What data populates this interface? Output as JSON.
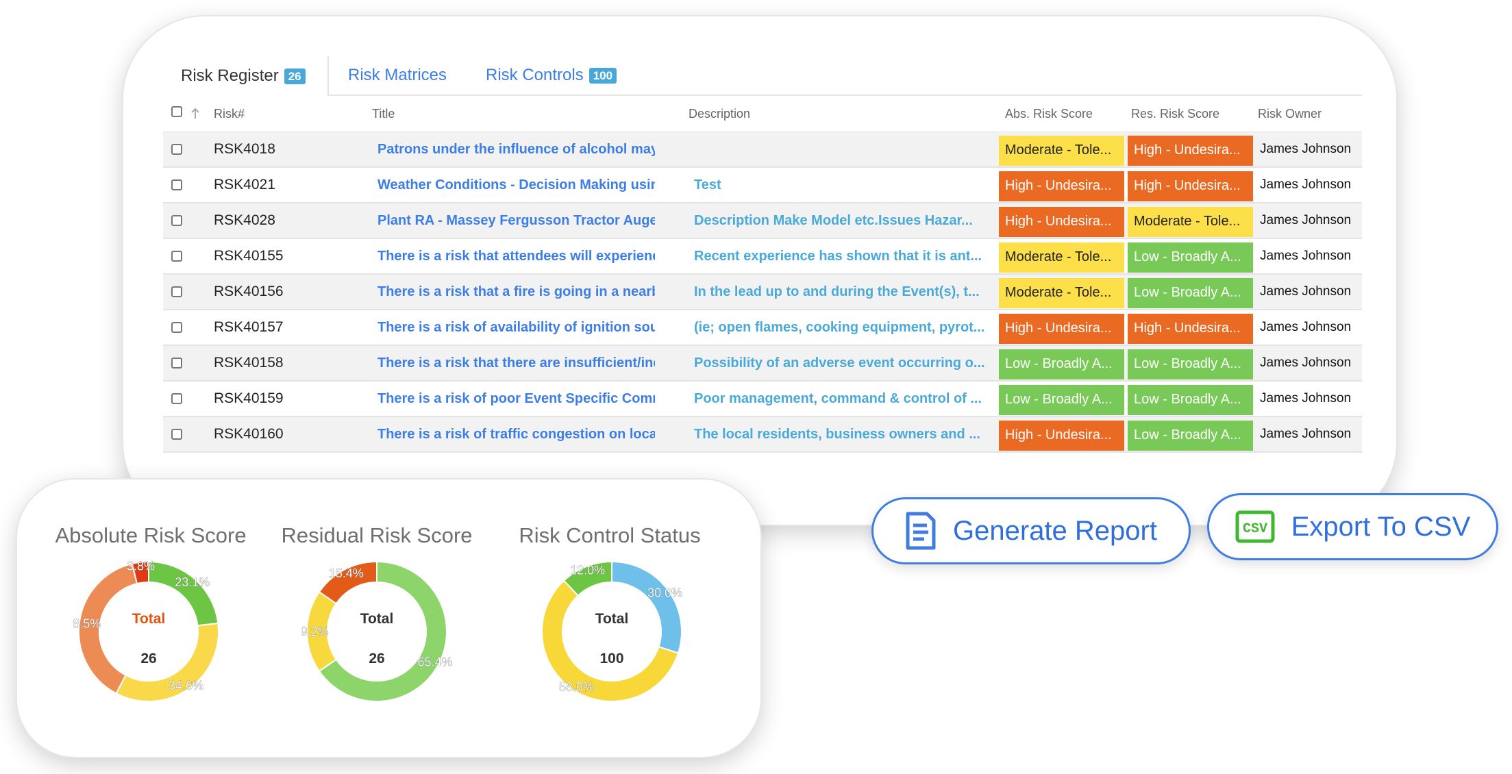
{
  "tabs": [
    {
      "label": "Risk Register",
      "badge": "26"
    },
    {
      "label": "Risk Matrices",
      "badge": ""
    },
    {
      "label": "Risk Controls",
      "badge": "100"
    }
  ],
  "table": {
    "headers": {
      "risk": "Risk#",
      "title": "Title",
      "description": "Description",
      "abs": "Abs. Risk Score",
      "res": "Res. Risk Score",
      "owner": "Risk Owner"
    },
    "rows": [
      {
        "id": "RSK4018",
        "title": "Patrons under the influence of alcohol may lea",
        "description": "",
        "abs": "Moderate - Tole...",
        "abs_level": "moderate",
        "res": "High - Undesira...",
        "res_level": "high",
        "owner": "James Johnson"
      },
      {
        "id": "RSK4021",
        "title": "Weather Conditions - Decision Making using O",
        "description": "Test",
        "abs": "High - Undesira...",
        "abs_level": "high",
        "res": "High - Undesira...",
        "res_level": "high",
        "owner": "James Johnson"
      },
      {
        "id": "RSK4028",
        "title": "Plant RA - Massey Fergusson Tractor Auger",
        "description": "Description Make Model etc.Issues Hazar...",
        "abs": "High - Undesira...",
        "abs_level": "high",
        "res": "Moderate - Tole...",
        "res_level": "moderate",
        "owner": "James Johnson"
      },
      {
        "id": "RSK40155",
        "title": "There is a risk that attendees will experience s",
        "description": "Recent experience has shown that it is ant...",
        "abs": "Moderate - Tole...",
        "abs_level": "moderate",
        "res": "Low - Broadly A...",
        "res_level": "low",
        "owner": "James Johnson"
      },
      {
        "id": "RSK40156",
        "title": "There is a risk that a fire is going in a nearby lo",
        "description": "In the lead up to and during the Event(s), t...",
        "abs": "Moderate - Tole...",
        "abs_level": "moderate",
        "res": "Low - Broadly A...",
        "res_level": "low",
        "owner": "James Johnson"
      },
      {
        "id": "RSK40157",
        "title": "There is a risk of availability of ignition sources",
        "description": "(ie; open flames, cooking equipment, pyrot...",
        "abs": "High - Undesira...",
        "abs_level": "high",
        "res": "High - Undesira...",
        "res_level": "high",
        "owner": "James Johnson"
      },
      {
        "id": "RSK40158",
        "title": "There is a risk that there are insufficient/ineffe",
        "description": "Possibility of an adverse event occurring o...",
        "abs": "Low - Broadly A...",
        "abs_level": "low",
        "res": "Low - Broadly A...",
        "res_level": "low",
        "owner": "James Johnson"
      },
      {
        "id": "RSK40159",
        "title": "There is a risk of poor Event Specific Comman",
        "description": "Poor management, command & control of ...",
        "abs": "Low - Broadly A...",
        "abs_level": "low",
        "res": "Low - Broadly A...",
        "res_level": "low",
        "owner": "James Johnson"
      },
      {
        "id": "RSK40160",
        "title": "There is a risk of traffic congestion on local roa",
        "description": "The local residents, business owners and ...",
        "abs": "High - Undesira...",
        "abs_level": "high",
        "res": "Low - Broadly A...",
        "res_level": "low",
        "owner": "James Johnson"
      }
    ]
  },
  "chart_data": [
    {
      "type": "pie",
      "donut": true,
      "title": "Absolute Risk Score",
      "center_label": "Total",
      "center_label_color": "#e2540e",
      "center_value": "26",
      "slices": [
        {
          "value": 23.1,
          "label": "23.1%",
          "color": "#6cc644"
        },
        {
          "value": 34.6,
          "label": "34.6%",
          "color": "#f9d949"
        },
        {
          "value": 38.5,
          "label": "38.5%",
          "color": "#ec8b54"
        },
        {
          "value": 3.8,
          "label": "3.8%",
          "color": "#de3b12"
        }
      ]
    },
    {
      "type": "pie",
      "donut": true,
      "title": "Residual Risk Score",
      "center_label": "Total",
      "center_label_color": "#333333",
      "center_value": "26",
      "slices": [
        {
          "value": 65.4,
          "label": "65.4%",
          "color": "#8dd46a"
        },
        {
          "value": 19.2,
          "label": "19.2%",
          "color": "#f7d93e"
        },
        {
          "value": 15.4,
          "label": "15.4%",
          "color": "#e35b18"
        }
      ]
    },
    {
      "type": "pie",
      "donut": true,
      "title": "Risk Control Status",
      "center_label": "Total",
      "center_label_color": "#333333",
      "center_value": "100",
      "slices": [
        {
          "value": 30.0,
          "label": "30.0%",
          "color": "#6ec0ea"
        },
        {
          "value": 58.0,
          "label": "58.0%",
          "color": "#f8d838"
        },
        {
          "value": 12.0,
          "label": "12.0%",
          "color": "#6cc644"
        }
      ]
    }
  ],
  "actions": {
    "generate_report": "Generate Report",
    "export_csv": "Export To CSV",
    "csv_icon_text": "CSV"
  },
  "colors": {
    "accent": "#3d7ee6",
    "high": "#ea6a23",
    "moderate": "#fde049",
    "low": "#78c957",
    "badge": "#4aa8d8"
  },
  "icons": {
    "sort": "arrow-up-icon",
    "report": "document-icon",
    "csv": "csv-file-icon"
  }
}
